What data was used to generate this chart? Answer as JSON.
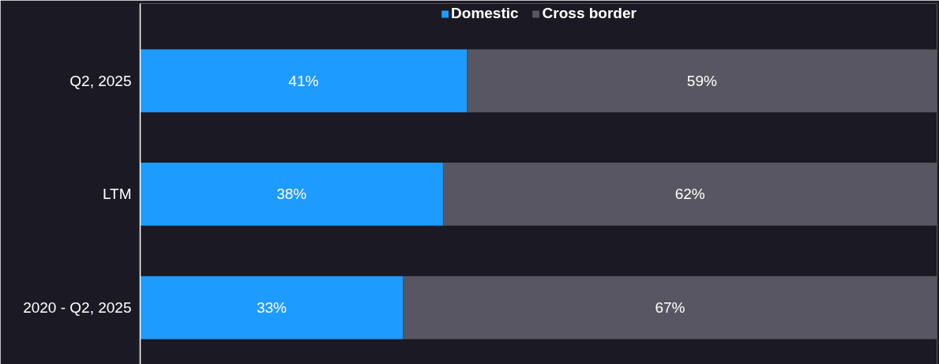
{
  "chart_data": {
    "type": "bar",
    "orientation": "horizontal",
    "stacked": true,
    "categories": [
      "Q2, 2025",
      "LTM",
      "2020 - Q2, 2025"
    ],
    "series": [
      {
        "name": "Domestic",
        "color": "#1e9bff",
        "values": [
          41,
          38,
          33
        ],
        "value_labels": [
          "41%",
          "38%",
          "33%"
        ]
      },
      {
        "name": "Cross border",
        "color": "#575662",
        "values": [
          59,
          62,
          67
        ],
        "value_labels": [
          "59%",
          "62%",
          "67%"
        ]
      }
    ],
    "xlim": [
      0,
      100
    ],
    "tick_labels": "y",
    "grid": false,
    "legend": "top"
  }
}
